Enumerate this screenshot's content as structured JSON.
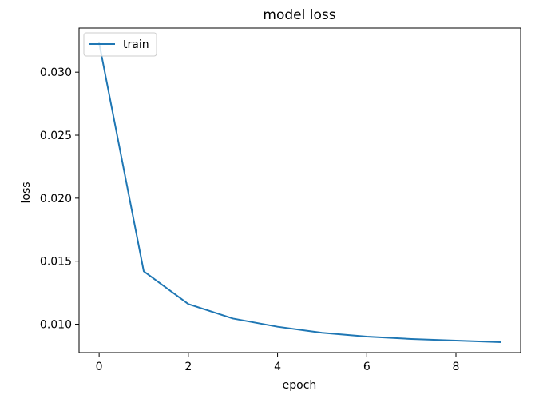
{
  "chart_data": {
    "type": "line",
    "title": "model loss",
    "xlabel": "epoch",
    "ylabel": "loss",
    "x": [
      0,
      1,
      2,
      3,
      4,
      5,
      6,
      7,
      8,
      9
    ],
    "series": [
      {
        "name": "train",
        "color": "#1f77b4",
        "values": [
          0.0323,
          0.0142,
          0.0116,
          0.01045,
          0.0098,
          0.00932,
          0.00902,
          0.00883,
          0.0087,
          0.00858
        ]
      }
    ],
    "xlim": [
      -0.45,
      9.45
    ],
    "ylim": [
      0.00775,
      0.0335
    ],
    "xticks": [
      0,
      2,
      4,
      6,
      8
    ],
    "xtick_labels": [
      "0",
      "2",
      "4",
      "6",
      "8"
    ],
    "yticks": [
      0.01,
      0.015,
      0.02,
      0.025,
      0.03
    ],
    "ytick_labels": [
      "0.010",
      "0.015",
      "0.020",
      "0.025",
      "0.030"
    ],
    "grid": false,
    "legend_position": "upper left"
  }
}
